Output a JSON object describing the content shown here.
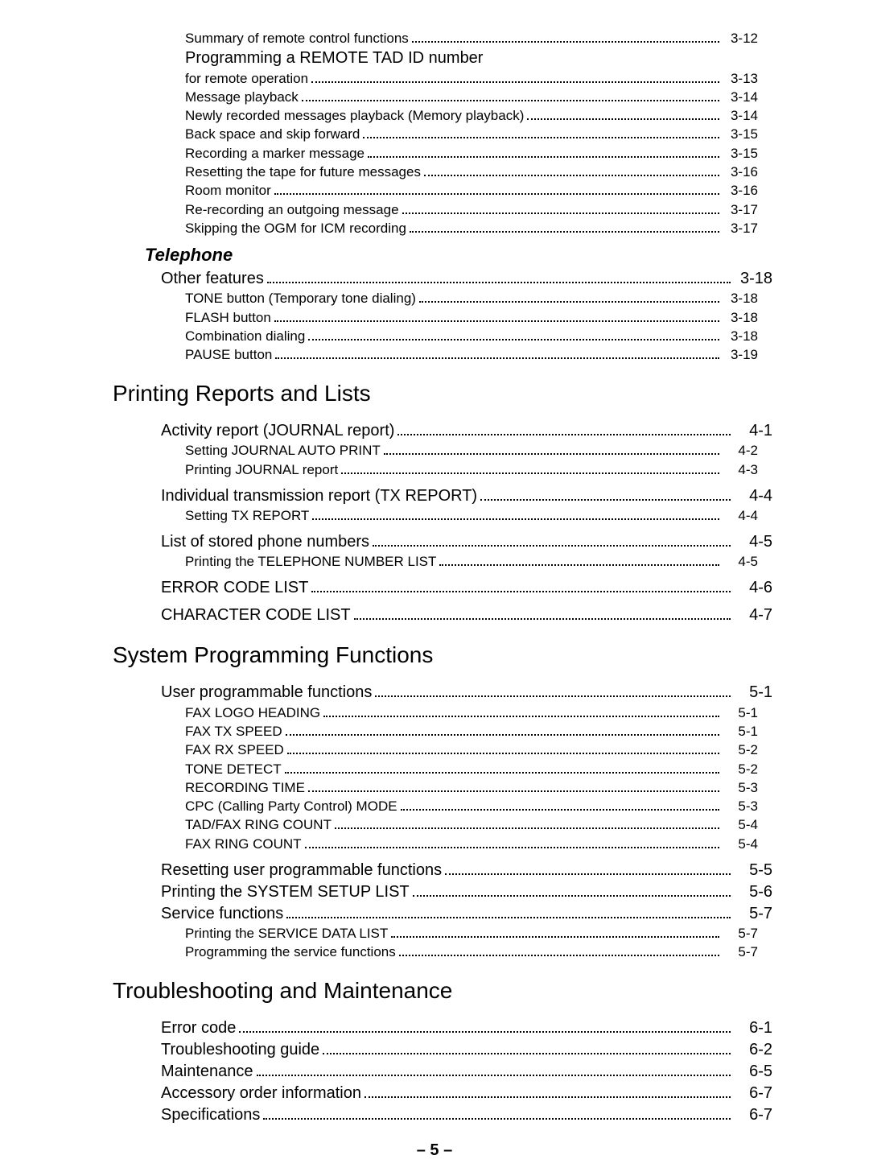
{
  "preBlock": [
    {
      "label": "Summary of remote control functions",
      "page": "3-12",
      "level": 2
    },
    {
      "label": "Programming a REMOTE TAD ID number",
      "page": "",
      "level": 2,
      "noDots": true,
      "noPage": true,
      "fontOverride": 20
    },
    {
      "label": "for remote operation",
      "page": "3-13",
      "level": 2
    },
    {
      "label": "Message playback",
      "page": "3-14",
      "level": 2
    },
    {
      "label": "Newly recorded messages playback (Memory playback)",
      "page": "3-14",
      "level": 2
    },
    {
      "label": "Back space and skip forward",
      "page": "3-15",
      "level": 2
    },
    {
      "label": "Recording a marker message",
      "page": "3-15",
      "level": 2
    },
    {
      "label": "Resetting the tape for future messages",
      "page": "3-16",
      "level": 2
    },
    {
      "label": "Room monitor",
      "page": "3-16",
      "level": 2
    },
    {
      "label": "Re-recording an outgoing message",
      "page": "3-17",
      "level": 2
    },
    {
      "label": "Skipping the OGM for ICM recording",
      "page": "3-17",
      "level": 2
    }
  ],
  "telephoneHeading": "Telephone",
  "telephoneBlock": [
    {
      "label": "Other features",
      "page": "3-18",
      "level": 1
    },
    {
      "label": "TONE button (Temporary tone dialing)",
      "page": "3-18",
      "level": 2
    },
    {
      "label": "FLASH button",
      "page": "3-18",
      "level": 2
    },
    {
      "label": "Combination dialing",
      "page": "3-18",
      "level": 2
    },
    {
      "label": "PAUSE button",
      "page": "3-19",
      "level": 2
    }
  ],
  "printingHeading": "Printing Reports and Lists",
  "printingBlocks": [
    [
      {
        "label": "Activity report (JOURNAL report)",
        "page": "4-1",
        "level": 1
      },
      {
        "label": "Setting JOURNAL AUTO PRINT",
        "page": "4-2",
        "level": 2
      },
      {
        "label": "Printing JOURNAL report",
        "page": "4-3",
        "level": 2
      }
    ],
    [
      {
        "label": "Individual transmission report (TX REPORT)",
        "page": "4-4",
        "level": 1
      },
      {
        "label": "Setting TX REPORT",
        "page": "4-4",
        "level": 2
      }
    ],
    [
      {
        "label": "List of stored phone numbers",
        "page": "4-5",
        "level": 1
      },
      {
        "label": "Printing the TELEPHONE NUMBER LIST",
        "page": "4-5",
        "level": 2
      }
    ],
    [
      {
        "label": "ERROR CODE LIST",
        "page": "4-6",
        "level": 1
      }
    ],
    [
      {
        "label": "CHARACTER CODE LIST",
        "page": "4-7",
        "level": 1
      }
    ]
  ],
  "sysHeading": "System Programming Functions",
  "sysBlocks": [
    [
      {
        "label": "User programmable functions",
        "page": "5-1",
        "level": 1
      },
      {
        "label": "FAX LOGO HEADING",
        "page": "5-1",
        "level": 2
      },
      {
        "label": "FAX TX SPEED",
        "page": "5-1",
        "level": 2
      },
      {
        "label": "FAX RX SPEED",
        "page": "5-2",
        "level": 2
      },
      {
        "label": "TONE DETECT",
        "page": "5-2",
        "level": 2
      },
      {
        "label": "RECORDING TIME",
        "page": "5-3",
        "level": 2
      },
      {
        "label": "CPC (Calling Party Control) MODE",
        "page": "5-3",
        "level": 2
      },
      {
        "label": "TAD/FAX RING COUNT",
        "page": "5-4",
        "level": 2
      },
      {
        "label": "FAX RING COUNT",
        "page": "5-4",
        "level": 2
      }
    ],
    [
      {
        "label": "Resetting user programmable functions",
        "page": "5-5",
        "level": 1
      },
      {
        "label": "Printing the SYSTEM SETUP LIST",
        "page": "5-6",
        "level": 1
      },
      {
        "label": "Service functions",
        "page": "5-7",
        "level": 1
      },
      {
        "label": "Printing the SERVICE DATA LIST",
        "page": "5-7",
        "level": 2
      },
      {
        "label": "Programming the service functions",
        "page": "5-7",
        "level": 2
      }
    ]
  ],
  "troubleHeading": "Troubleshooting and Maintenance",
  "troubleBlock": [
    {
      "label": "Error code",
      "page": "6-1",
      "level": 1
    },
    {
      "label": "Troubleshooting guide",
      "page": "6-2",
      "level": 1
    },
    {
      "label": "Maintenance",
      "page": "6-5",
      "level": 1
    },
    {
      "label": "Accessory order information",
      "page": "6-7",
      "level": 1
    },
    {
      "label": "Specifications",
      "page": "6-7",
      "level": 1
    }
  ],
  "footer": "– 5 –",
  "style": {
    "pageBg": "#ffffff",
    "textColor": "#000000",
    "lvl1FontSize": 20,
    "lvl2FontSize": 17,
    "sectionTitleFontSize": 28,
    "italicTitleFontSize": 22
  }
}
